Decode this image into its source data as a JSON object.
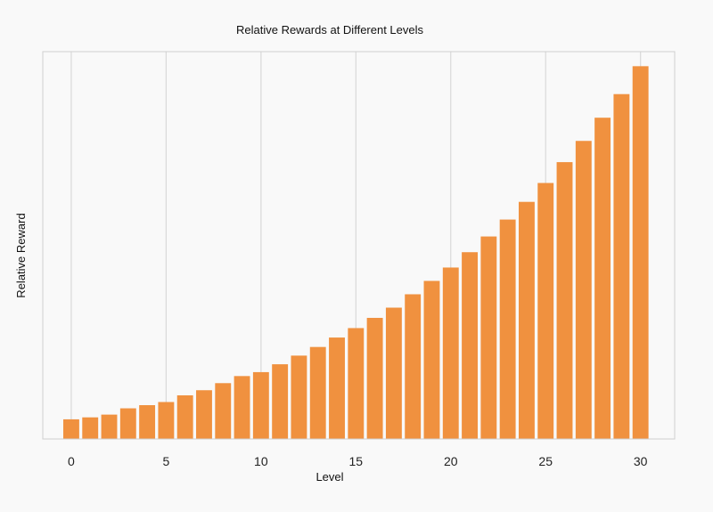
{
  "chart_data": {
    "type": "bar",
    "title": "Relative Rewards at Different Levels",
    "xlabel": "Level",
    "ylabel": "Relative Reward",
    "x": [
      0,
      1,
      2,
      3,
      4,
      5,
      6,
      7,
      8,
      9,
      10,
      11,
      12,
      13,
      14,
      15,
      16,
      17,
      18,
      19,
      20,
      21,
      22,
      23,
      24,
      25,
      26,
      27,
      28,
      29,
      30
    ],
    "values": [
      5.0,
      5.5,
      6.2,
      7.8,
      8.6,
      9.4,
      11.1,
      12.4,
      14.2,
      16.0,
      17.0,
      19.0,
      21.2,
      23.4,
      25.8,
      28.2,
      30.8,
      33.4,
      36.8,
      40.2,
      43.6,
      47.5,
      51.5,
      55.8,
      60.3,
      65.1,
      70.4,
      75.8,
      81.7,
      87.7,
      94.8
    ],
    "xticks": [
      0,
      5,
      10,
      15,
      20,
      25,
      30
    ],
    "xlim": [
      -1.5,
      31.8
    ],
    "ylim": [
      0,
      98.5
    ],
    "grid": "vertical",
    "bar_color": "#f0913f",
    "grid_color": "#d9d9d9",
    "frame_color": "#cfcfcf"
  }
}
